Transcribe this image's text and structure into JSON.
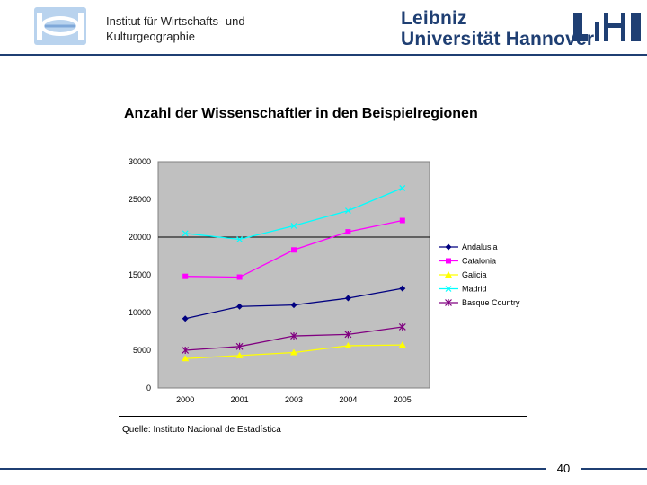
{
  "header": {
    "institute_line1": "Institut für Wirtschafts- und",
    "institute_line2": "Kulturgeographie",
    "university_line1": "Leibniz",
    "university_line2": "Universität Hannover",
    "brand_color": "#1f3f73"
  },
  "slide": {
    "title": "Anzahl der Wissenschaftler in den Beispielregionen",
    "source": "Quelle: Instituto Nacional de Estadística",
    "page_number": "40"
  },
  "chart_data": {
    "type": "line",
    "title": "",
    "xlabel": "",
    "ylabel": "",
    "categories": [
      "2000",
      "2001",
      "2003",
      "2004",
      "2005"
    ],
    "ylim": [
      0,
      30000
    ],
    "yticks": [
      0,
      5000,
      10000,
      15000,
      20000,
      25000,
      30000
    ],
    "ytick_labels": [
      "0",
      "5000",
      "10000",
      "15000",
      "20000",
      "25000",
      "30000"
    ],
    "grid": "horizontal at 20000",
    "legend_position": "right",
    "plot_background": "#c0c0c0",
    "series": [
      {
        "name": "Andalusia",
        "color": "#000080",
        "marker": "diamond",
        "values": [
          9200,
          10800,
          11000,
          11900,
          13200
        ]
      },
      {
        "name": "Catalonia",
        "color": "#ff00ff",
        "marker": "square",
        "values": [
          14800,
          14700,
          18300,
          20700,
          22200
        ]
      },
      {
        "name": "Galicia",
        "color": "#ffff00",
        "marker": "triangle",
        "values": [
          3900,
          4300,
          4700,
          5600,
          5700
        ]
      },
      {
        "name": "Madrid",
        "color": "#00ffff",
        "marker": "x",
        "values": [
          20500,
          19700,
          21500,
          23500,
          26500
        ]
      },
      {
        "name": "Basque Country",
        "color": "#800080",
        "marker": "star",
        "values": [
          5000,
          5500,
          6900,
          7100,
          8100
        ]
      }
    ]
  }
}
